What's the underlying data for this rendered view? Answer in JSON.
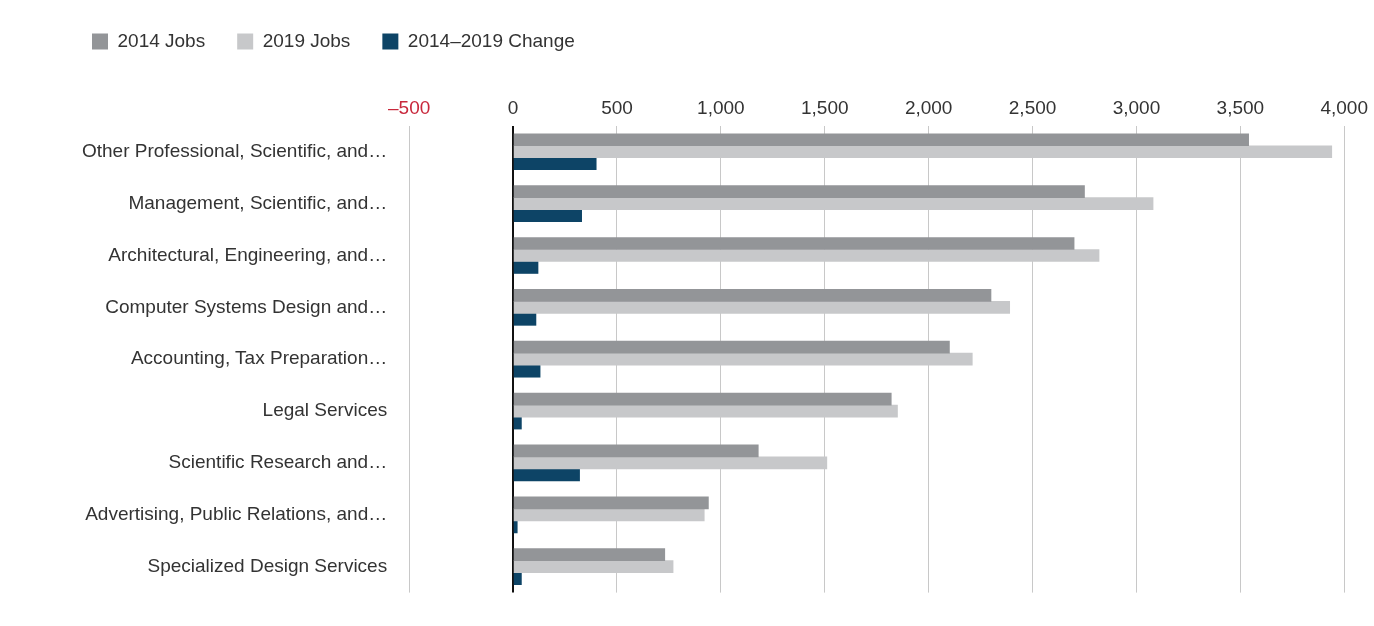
{
  "chart_data": {
    "type": "bar",
    "orientation": "horizontal",
    "categories": [
      "Other Professional, Scientific, and…",
      "Management, Scientific, and…",
      "Architectural, Engineering, and…",
      "Computer Systems Design and…",
      "Accounting, Tax Preparation…",
      "Legal Services",
      "Scientific Research and…",
      "Advertising, Public Relations, and…",
      "Specialized Design Services"
    ],
    "series": [
      {
        "name": "2014 Jobs",
        "color": "#939598",
        "values": [
          3540,
          2750,
          2700,
          2300,
          2100,
          1820,
          1180,
          940,
          730
        ]
      },
      {
        "name": "2019 Jobs",
        "color": "#c7c8ca",
        "values": [
          3940,
          3080,
          2820,
          2390,
          2210,
          1850,
          1510,
          920,
          770
        ]
      },
      {
        "name": "2014–2019 Change",
        "color": "#0d4466",
        "values": [
          400,
          330,
          120,
          110,
          130,
          40,
          320,
          20,
          40
        ]
      }
    ],
    "xlim": [
      -500,
      4000
    ],
    "xticks": [
      {
        "value": -500,
        "label": "–500"
      },
      0,
      500,
      {
        "value": 1000,
        "label": "1,000"
      },
      {
        "value": 1500,
        "label": "1,500"
      },
      {
        "value": 2000,
        "label": "2,000"
      },
      {
        "value": 2500,
        "label": "2,500"
      },
      {
        "value": 3000,
        "label": "3,000"
      },
      {
        "value": 3500,
        "label": "3,500"
      },
      {
        "value": 4000,
        "label": "4,000"
      }
    ],
    "grid": "x",
    "legend": "top left"
  }
}
